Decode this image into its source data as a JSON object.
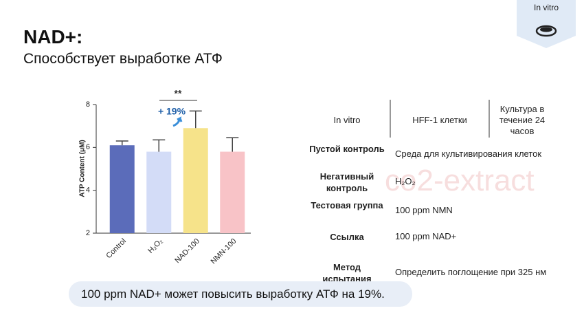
{
  "header": {
    "title": "NAD+:",
    "subtitle": "Способствует выработке АТФ",
    "badge": "In vitro"
  },
  "chart_data": {
    "type": "bar",
    "y_label": "ATP Content (μM)",
    "categories": [
      "Control",
      "H₂O₂",
      "NAD-100",
      "NMN-100"
    ],
    "values": [
      6.1,
      5.8,
      6.9,
      5.8
    ],
    "errors": [
      0.2,
      0.55,
      0.8,
      0.65
    ],
    "colors": [
      "#5b6cba",
      "#d3dcf7",
      "#f6e38a",
      "#f8c3c7"
    ],
    "ylim": [
      2,
      8
    ],
    "yticks": [
      2,
      4,
      6,
      8
    ],
    "significance": "**",
    "annotation": "+ 19%"
  },
  "table": {
    "header": [
      "In vitro",
      "HFF-1 клетки",
      "Культура в течение 24 часов"
    ],
    "rows": [
      [
        "Пустой контроль",
        "Среда для культивирования клеток"
      ],
      [
        "Негативный контроль",
        "H₂O₂"
      ],
      [
        "Тестовая группа",
        "100 ppm NMN"
      ],
      [
        "Ссылка",
        "100 ppm NAD+"
      ],
      [
        "Метод испытания",
        "Определить поглощение при 325 нм"
      ]
    ]
  },
  "watermark": "co2-extract",
  "footnote": "100 ppm NAD+ может повысить выработку АТФ на 19%."
}
